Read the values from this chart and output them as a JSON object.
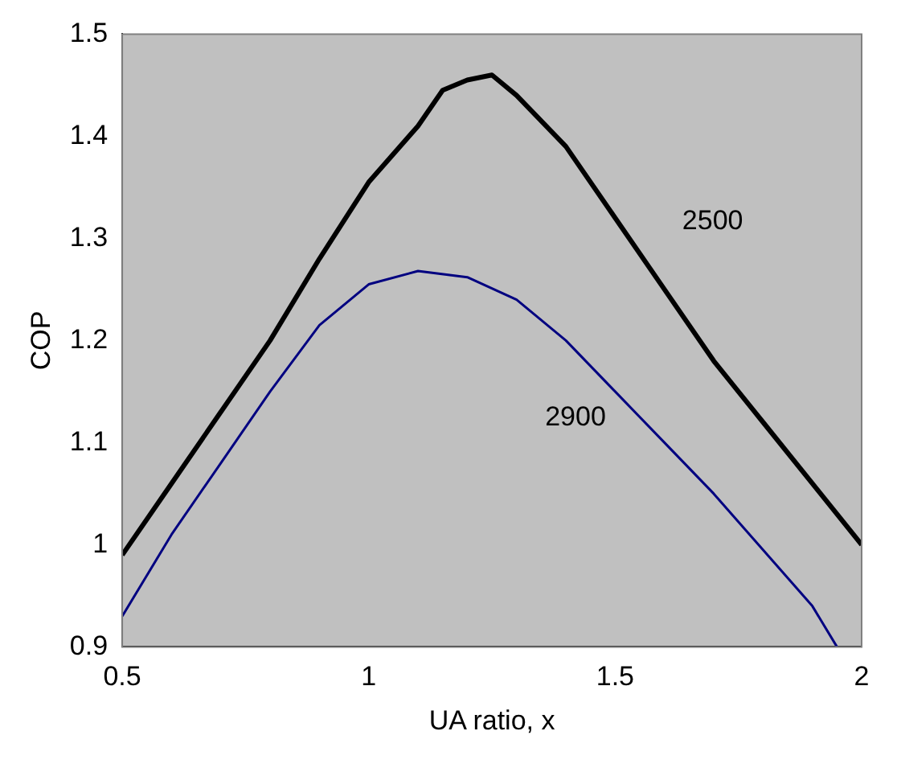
{
  "chart_data": {
    "type": "line",
    "xlabel": "UA ratio, x",
    "ylabel": "COP",
    "xlim": [
      0.5,
      2
    ],
    "xticks": [
      0.5,
      1,
      1.5,
      2
    ],
    "ylim": [
      0.9,
      1.5
    ],
    "yticks": [
      0.9,
      1,
      1.1,
      1.2,
      1.3,
      1.4,
      1.5
    ],
    "grid": false,
    "legend": false,
    "marker": "none",
    "series": [
      {
        "name": "2500",
        "color": "#000000",
        "x": [
          0.5,
          0.6,
          0.7,
          0.8,
          0.9,
          1.0,
          1.1,
          1.15,
          1.2,
          1.25,
          1.3,
          1.4,
          1.5,
          1.6,
          1.7,
          1.8,
          1.9,
          2.0
        ],
        "values": [
          0.99,
          1.06,
          1.13,
          1.2,
          1.28,
          1.355,
          1.41,
          1.445,
          1.455,
          1.46,
          1.44,
          1.39,
          1.32,
          1.25,
          1.18,
          1.12,
          1.06,
          1.0
        ]
      },
      {
        "name": "2900",
        "color": "#000080",
        "x": [
          0.5,
          0.6,
          0.7,
          0.8,
          0.9,
          1.0,
          1.1,
          1.2,
          1.3,
          1.4,
          1.5,
          1.6,
          1.7,
          1.8,
          1.9,
          1.95
        ],
        "values": [
          0.93,
          1.01,
          1.08,
          1.15,
          1.215,
          1.255,
          1.268,
          1.262,
          1.24,
          1.2,
          1.15,
          1.1,
          1.05,
          0.995,
          0.94,
          0.9
        ]
      }
    ]
  }
}
